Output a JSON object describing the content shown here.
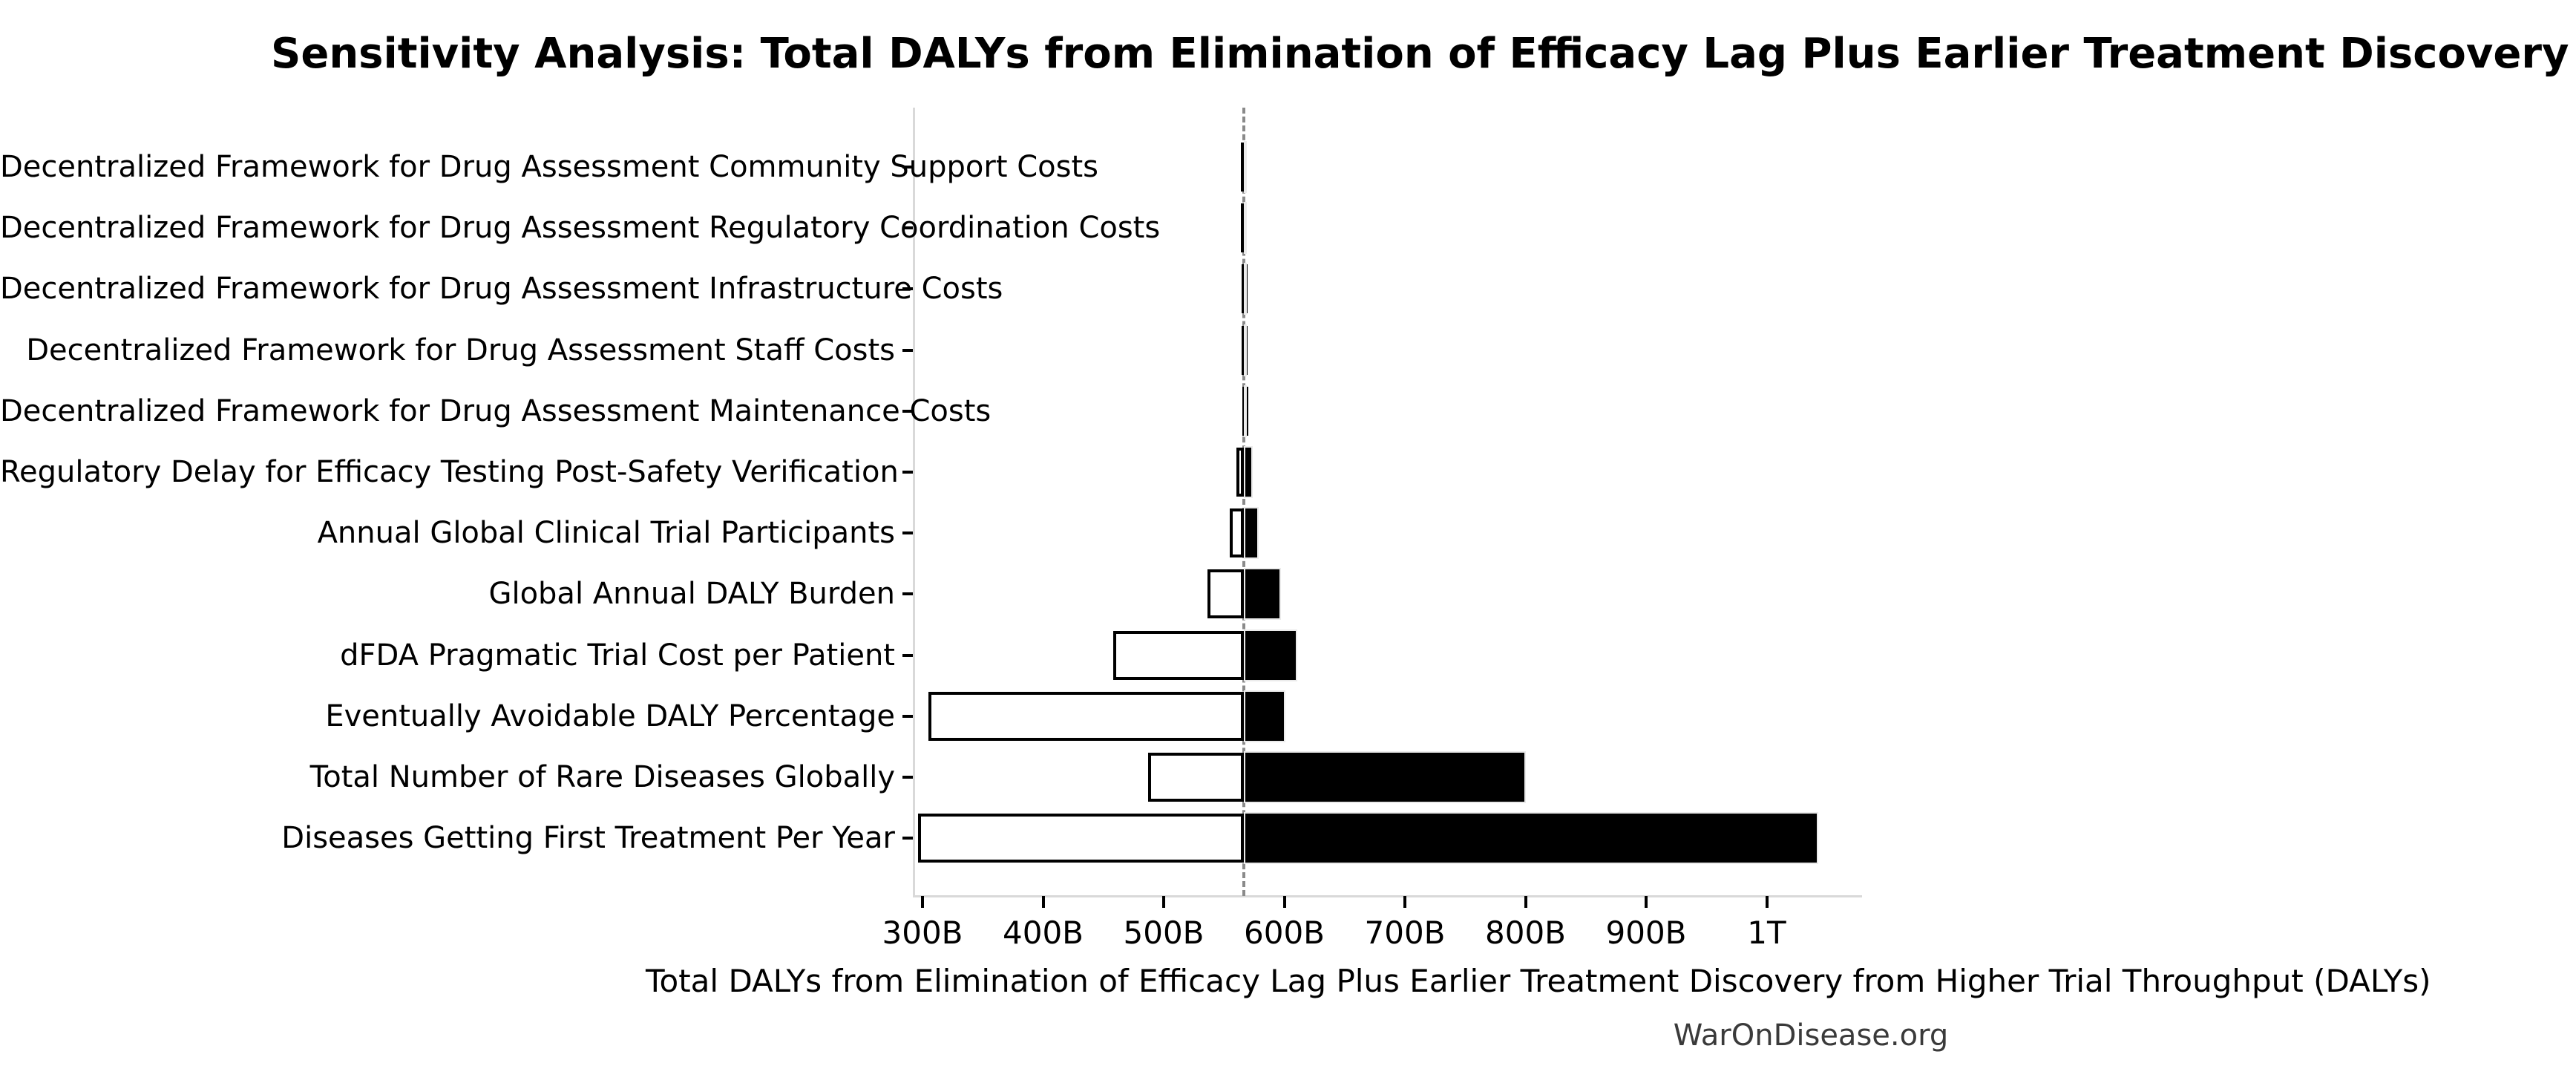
{
  "chart_data": {
    "type": "bar",
    "variant": "tornado-sensitivity",
    "title": "Sensitivity Analysis: Total DALYs from Elimination of Efficacy Lag Plus Earlier Treatment Discovery from Higher Trial Throughput",
    "xlabel": "Total DALYs from Elimination of Efficacy Lag Plus Earlier Treatment Discovery from Higher Trial Throughput (DALYs)",
    "watermark": "WarOnDisease.org",
    "value_unit_billions_daly": true,
    "baseline_value": 566.5,
    "axis_range": [
      293,
      1078.5
    ],
    "grid": false,
    "legend": false,
    "colors": {
      "low_bar_fill": "#ffffff",
      "low_bar_edge": "#000000",
      "high_bar_fill": "#000000",
      "baseline_line": "#8a8a8a",
      "spine": "#d9d9d9",
      "watermark_text": "#3a3a3a"
    },
    "x_ticks": [
      {
        "value": 300,
        "label": "300B"
      },
      {
        "value": 400,
        "label": "400B"
      },
      {
        "value": 500,
        "label": "500B"
      },
      {
        "value": 600,
        "label": "600B"
      },
      {
        "value": 700,
        "label": "700B"
      },
      {
        "value": 800,
        "label": "800B"
      },
      {
        "value": 900,
        "label": "900B"
      },
      {
        "value": 1000,
        "label": "1T"
      }
    ],
    "rows": [
      {
        "label": "Decentralized Framework for Drug Assessment Community Support Costs",
        "low": 564,
        "high": 568
      },
      {
        "label": "Decentralized Framework for Drug Assessment Regulatory Coordination Costs",
        "low": 564,
        "high": 568
      },
      {
        "label": "Decentralized Framework for Drug Assessment Infrastructure Costs",
        "low": 564.5,
        "high": 567.5
      },
      {
        "label": "Decentralized Framework for Drug Assessment Staff Costs",
        "low": 564.5,
        "high": 567.5
      },
      {
        "label": "Decentralized Framework for Drug Assessment Maintenance Costs",
        "low": 565,
        "high": 567.5
      },
      {
        "label": "Regulatory Delay for Efficacy Testing Post-Safety Verification",
        "low": 560,
        "high": 574
      },
      {
        "label": "Annual Global Clinical Trial Participants",
        "low": 555,
        "high": 579
      },
      {
        "label": "Global Annual DALY Burden",
        "low": 536,
        "high": 597
      },
      {
        "label": "dFDA Pragmatic Trial Cost per Patient",
        "low": 458,
        "high": 611
      },
      {
        "label": "Eventually Avoidable DALY Percentage",
        "low": 305,
        "high": 601
      },
      {
        "label": "Total Number of Rare Diseases Globally",
        "low": 487,
        "high": 800
      },
      {
        "label": "Diseases Getting First Treatment Per Year",
        "low": 296,
        "high": 1043
      }
    ]
  }
}
